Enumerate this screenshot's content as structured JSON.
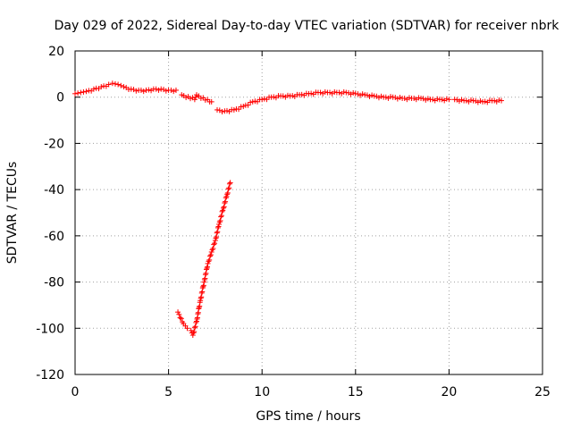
{
  "chart_data": {
    "type": "scatter",
    "title": "Day 029 of 2022, Sidereal Day-to-day VTEC variation (SDTVAR) for receiver nbrk",
    "xlabel": "GPS time / hours",
    "ylabel": "SDTVAR / TECUs",
    "xlim": [
      0,
      25
    ],
    "ylim": [
      -120,
      20
    ],
    "xticks": [
      0,
      5,
      10,
      15,
      20,
      25
    ],
    "yticks": [
      -120,
      -100,
      -80,
      -60,
      -40,
      -20,
      0,
      20
    ],
    "grid": true,
    "marker": "+",
    "color": "#ff0000",
    "series": [
      {
        "name": "SDTVAR",
        "segments": [
          {
            "x": [
              0.0,
              0.3,
              0.6,
              1.0,
              1.4,
              1.8,
              2.0,
              2.3,
              2.6,
              3.0,
              3.4,
              3.8,
              4.2,
              4.6,
              5.0,
              5.4
            ],
            "y": [
              1.5,
              2,
              2.5,
              3.5,
              4.5,
              5.5,
              6,
              5.5,
              4.5,
              3.5,
              3,
              3,
              3.5,
              3.5,
              3,
              3
            ]
          },
          {
            "x": [
              5.7,
              6.4,
              6.5,
              7.2,
              7.3
            ],
            "y": [
              1,
              -1,
              1,
              -2,
              -2
            ]
          },
          {
            "x": [
              7.6,
              8.0,
              8.5,
              9.0,
              9.5,
              10.0,
              10.5,
              11.0,
              11.5,
              12.0,
              12.5,
              13.0,
              13.5,
              14.0,
              14.5,
              15.0,
              15.5,
              16.0,
              16.5,
              17.0,
              17.5,
              18.0,
              18.5,
              19.0,
              19.5,
              20.0
            ],
            "y": [
              -5.5,
              -6,
              -5.5,
              -4,
              -2,
              -1,
              0,
              0.5,
              0.5,
              1,
              1.5,
              2,
              2,
              2,
              2,
              1.5,
              1,
              0.5,
              0,
              0,
              -0.5,
              -0.5,
              -0.5,
              -1,
              -1,
              -1
            ]
          },
          {
            "x": [
              20.3,
              20.8,
              21.3,
              21.8,
              22.3,
              22.8
            ],
            "y": [
              -1,
              -1.5,
              -1.5,
              -2,
              -1.5,
              -1.5
            ]
          },
          {
            "x": [
              5.5,
              5.8,
              6.0,
              6.2,
              6.3,
              6.5,
              6.7,
              6.9,
              7.1,
              7.3,
              7.5,
              7.7,
              7.9,
              8.1,
              8.3
            ],
            "y": [
              -93,
              -98,
              -100,
              -101,
              -103,
              -97,
              -88,
              -80,
              -72,
              -67,
              -62,
              -55,
              -49,
              -43,
              -37
            ]
          }
        ]
      }
    ]
  }
}
